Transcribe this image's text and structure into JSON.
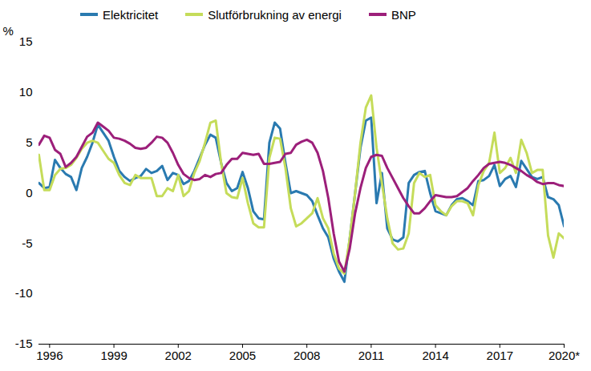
{
  "chart_data": {
    "type": "line",
    "x": [
      1995.5,
      1995.75,
      1996,
      1996.25,
      1996.5,
      1996.75,
      1997,
      1997.25,
      1997.5,
      1997.75,
      1998,
      1998.25,
      1998.5,
      1998.75,
      1999,
      1999.25,
      1999.5,
      1999.75,
      2000,
      2000.25,
      2000.5,
      2000.75,
      2001,
      2001.25,
      2001.5,
      2001.75,
      2002,
      2002.25,
      2002.5,
      2002.75,
      2003,
      2003.25,
      2003.5,
      2003.75,
      2004,
      2004.25,
      2004.5,
      2004.75,
      2005,
      2005.25,
      2005.5,
      2005.75,
      2006,
      2006.25,
      2006.5,
      2006.75,
      2007,
      2007.25,
      2007.5,
      2007.75,
      2008,
      2008.25,
      2008.5,
      2008.75,
      2009,
      2009.25,
      2009.5,
      2009.75,
      2010,
      2010.25,
      2010.5,
      2010.75,
      2011,
      2011.25,
      2011.5,
      2011.75,
      2012,
      2012.25,
      2012.5,
      2012.75,
      2013,
      2013.25,
      2013.5,
      2013.75,
      2014,
      2014.25,
      2014.5,
      2014.75,
      2015,
      2015.25,
      2015.5,
      2015.75,
      2016,
      2016.25,
      2016.5,
      2016.75,
      2017,
      2017.25,
      2017.5,
      2017.75,
      2018,
      2018.25,
      2018.5,
      2018.75,
      2019,
      2019.25,
      2019.5,
      2019.75,
      2020
    ],
    "series": [
      {
        "name": "Elektricitet",
        "color": "#2a7ab0",
        "values": [
          1.0,
          0.5,
          0.6,
          3.3,
          2.5,
          1.9,
          1.6,
          0.3,
          2.5,
          3.6,
          5.0,
          6.8,
          6.0,
          5.2,
          3.6,
          2.2,
          1.6,
          1.2,
          1.5,
          1.7,
          2.4,
          2.0,
          2.2,
          2.7,
          1.3,
          2.0,
          1.8,
          0.9,
          1.2,
          2.2,
          3.5,
          4.8,
          5.8,
          5.5,
          3.0,
          1.0,
          0.2,
          0.5,
          2.1,
          0.5,
          -1.8,
          -2.5,
          -2.6,
          5.0,
          7.0,
          6.4,
          3.0,
          0.0,
          0.2,
          0.0,
          -0.2,
          -0.8,
          -2.2,
          -3.5,
          -4.4,
          -6.5,
          -7.8,
          -8.8,
          -4.5,
          0.0,
          4.5,
          7.2,
          7.5,
          -1.0,
          2.0,
          -3.5,
          -4.6,
          -4.8,
          -4.4,
          1.0,
          1.8,
          2.1,
          2.2,
          0.0,
          -1.8,
          -2.0,
          -2.2,
          -1.2,
          -0.6,
          -0.5,
          -0.8,
          -1.2,
          1.2,
          1.3,
          1.7,
          2.8,
          0.7,
          1.4,
          1.7,
          0.6,
          3.2,
          2.4,
          1.6,
          1.4,
          1.6,
          -0.4,
          -0.6,
          -1.2,
          -3.3
        ]
      },
      {
        "name": "Slutförbrukning av energi",
        "color": "#c5dc5a",
        "values": [
          3.8,
          0.3,
          0.3,
          1.8,
          2.4,
          2.5,
          2.8,
          3.5,
          4.4,
          5.0,
          5.2,
          5.0,
          4.2,
          3.4,
          3.0,
          1.8,
          1.0,
          0.8,
          1.8,
          1.5,
          1.5,
          1.5,
          -0.3,
          -0.3,
          0.5,
          0.2,
          1.8,
          -0.3,
          0.2,
          2.0,
          3.2,
          5.0,
          7.0,
          7.2,
          3.0,
          0.0,
          -0.4,
          -0.5,
          1.5,
          -1.0,
          -3.0,
          -3.4,
          -3.4,
          3.5,
          5.5,
          5.4,
          2.5,
          -1.5,
          -3.3,
          -3.0,
          -2.5,
          -2.0,
          -0.5,
          -2.5,
          -3.5,
          -6.0,
          -7.5,
          -8.0,
          -4.5,
          0.0,
          5.0,
          8.5,
          9.7,
          4.5,
          1.0,
          -2.5,
          -5.0,
          -5.6,
          -5.5,
          -4.0,
          1.0,
          2.0,
          1.6,
          1.8,
          -1.2,
          -1.8,
          -2.2,
          -1.3,
          -0.8,
          -0.8,
          -1.0,
          -2.2,
          0.8,
          2.2,
          3.0,
          6.0,
          2.0,
          2.5,
          3.5,
          2.0,
          5.3,
          4.0,
          2.0,
          2.3,
          2.3,
          -4.2,
          -6.4,
          -4.0,
          -4.5
        ]
      },
      {
        "name": "BNP",
        "color": "#9c1f7a",
        "values": [
          4.8,
          5.7,
          5.5,
          4.3,
          3.9,
          2.6,
          3.0,
          3.6,
          4.6,
          5.6,
          6.0,
          7.0,
          6.6,
          6.2,
          5.5,
          5.4,
          5.2,
          4.9,
          4.5,
          4.4,
          4.5,
          5.0,
          5.6,
          5.5,
          5.0,
          4.0,
          2.8,
          1.9,
          1.5,
          1.3,
          1.4,
          1.8,
          1.6,
          1.9,
          2.0,
          2.8,
          3.4,
          3.4,
          4.0,
          3.9,
          3.8,
          3.9,
          2.9,
          2.9,
          3.0,
          3.1,
          3.9,
          4.0,
          4.8,
          5.1,
          5.3,
          5.0,
          4.0,
          2.2,
          -0.5,
          -4.0,
          -6.8,
          -7.8,
          -5.5,
          -2.0,
          0.5,
          2.5,
          3.6,
          3.8,
          3.7,
          2.5,
          1.5,
          0.5,
          -0.5,
          -1.3,
          -2.0,
          -2.0,
          -1.5,
          -0.8,
          -0.2,
          -0.3,
          -0.4,
          -0.4,
          -0.3,
          0.1,
          0.5,
          1.2,
          1.8,
          2.5,
          2.9,
          3.0,
          3.1,
          3.0,
          2.8,
          2.5,
          2.2,
          1.8,
          1.5,
          1.1,
          0.9,
          1.0,
          1.0,
          0.8,
          0.7
        ]
      }
    ],
    "y_label": "%",
    "xlim": [
      1995.5,
      2020
    ],
    "xticks": [
      1996,
      1999,
      2002,
      2005,
      2008,
      2011,
      2014,
      2017,
      {
        "value": 2020,
        "label": "2020*"
      }
    ],
    "ylim": [
      -15,
      15
    ],
    "yticks": [
      -15,
      -10,
      -5,
      0,
      5,
      10,
      15
    ],
    "grid": false,
    "legend": "top"
  }
}
